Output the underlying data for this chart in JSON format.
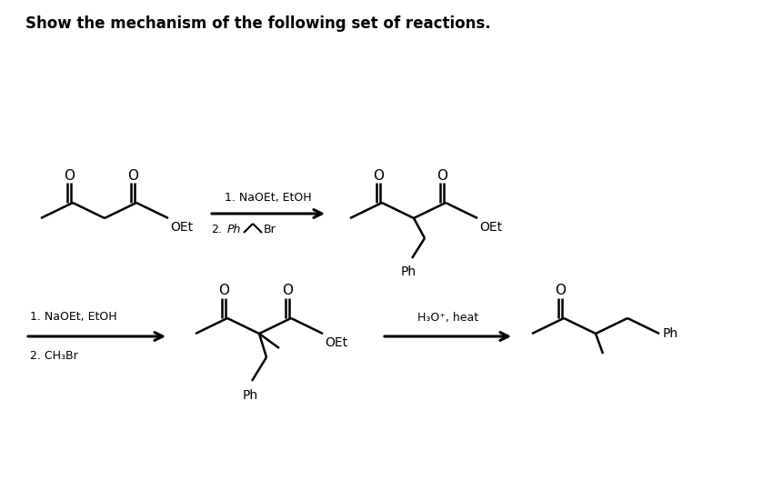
{
  "title": "Show the mechanism of the following set of reactions.",
  "bg_color": "#ffffff",
  "line_color": "#000000",
  "line_width": 1.8,
  "arrow1_label_top": "1. NaOEt, EtOH",
  "arrow2_label_top": "1. NaOEt, EtOH",
  "arrow2_label_bot": "2. CH₃Br",
  "arrow3_label": "H₃O⁺, heat"
}
